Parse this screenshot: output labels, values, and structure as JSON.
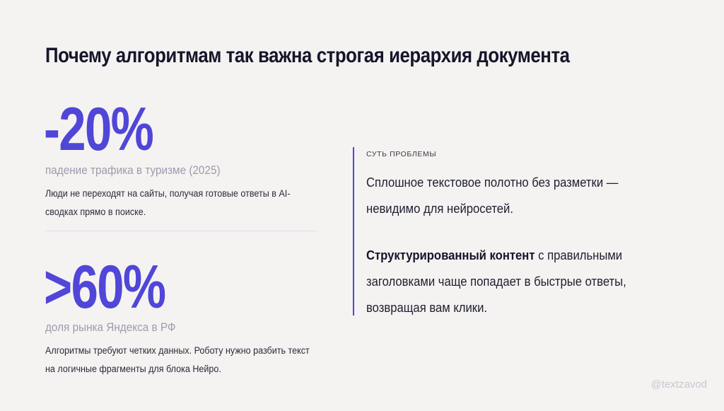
{
  "title": "Почему алгоритмам так важна строгая иерархия документа",
  "stats": [
    {
      "value": "-20%",
      "label": "падение трафика в туризме (2025)",
      "description": "Люди не переходят на сайты, получая готовые ответы в AI-сводках прямо в поиске."
    },
    {
      "value": ">60%",
      "label": "доля рынка Яндекса в РФ",
      "description": "Алгоритмы требуют четких данных. Роботу нужно разбить текст на логичные фрагменты для блока Нейро."
    }
  ],
  "problem": {
    "kicker": "СУТЬ ПРОБЛЕМЫ",
    "paragraph1": "Сплошное текстовое полотно без разметки — невидимо для нейросетей.",
    "paragraph2_bold": "Структурированный контент",
    "paragraph2_rest": " с правильными заголовками чаще попадает в быстрые ответы, возвращая вам клики."
  },
  "handle": "@textzavod",
  "colors": {
    "accent": "#5046d8",
    "background": "#f5f3f1",
    "muted": "#9d9bb0"
  }
}
